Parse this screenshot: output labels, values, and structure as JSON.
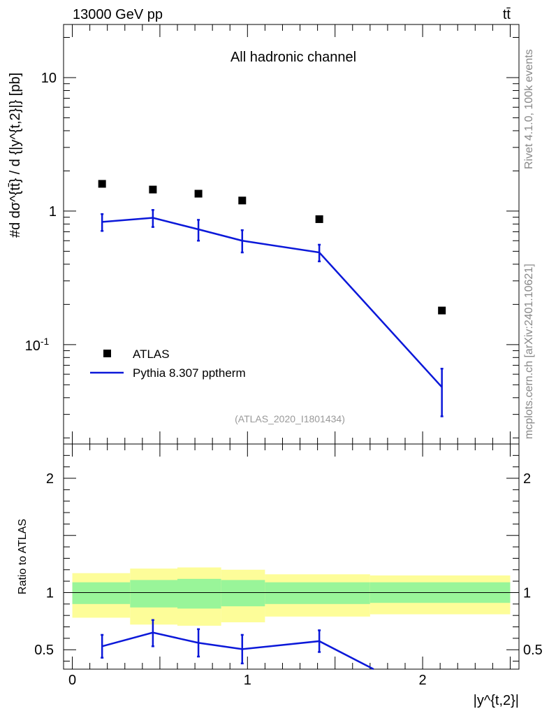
{
  "header": {
    "beam_label": "13000 GeV pp",
    "process_label": "tt̄"
  },
  "side_text": {
    "rivet": "Rivet 4.1.0,  100k events",
    "mcplots": "mcplots.cern.ch [arXiv:2401.10621]"
  },
  "colors": {
    "data": "#000000",
    "mc": "#0b18d9",
    "band_inner": "#99f599",
    "band_outer": "#fdfd99"
  },
  "chart_data": [
    {
      "type": "scatter",
      "panel": "main",
      "title": "All hadronic channel",
      "reference": "(ATLAS_2020_I1801434)",
      "ylabel": "#d dσ^{tt̄} / d {|y^{t,2}|} [pb]",
      "yscale": "log",
      "ylim": [
        0.018,
        25
      ],
      "xlim": [
        -0.05,
        2.55
      ],
      "y_tick_labels": [
        "10^{-1}",
        "1",
        "10"
      ],
      "legend": [
        "ATLAS",
        "Pythia 8.307 pptherm"
      ],
      "series": [
        {
          "name": "ATLAS",
          "style": "markers",
          "x": [
            0.17,
            0.46,
            0.72,
            0.97,
            1.41,
            2.11
          ],
          "y": [
            1.6,
            1.45,
            1.35,
            1.2,
            0.87,
            0.18
          ]
        },
        {
          "name": "Pythia 8.307 pptherm",
          "style": "line",
          "x": [
            0.17,
            0.46,
            0.72,
            0.97,
            1.41,
            2.11
          ],
          "y": [
            0.83,
            0.89,
            0.73,
            0.6,
            0.49,
            0.048
          ],
          "err_low": [
            0.71,
            0.76,
            0.6,
            0.49,
            0.42,
            0.029
          ],
          "err_high": [
            0.95,
            1.02,
            0.86,
            0.72,
            0.56,
            0.066
          ]
        }
      ]
    },
    {
      "type": "line",
      "panel": "ratio",
      "ylabel": "Ratio to ATLAS",
      "xlabel": "|y^{t,2}|",
      "ylim": [
        0.33,
        2.3
      ],
      "xlim": [
        -0.05,
        2.55
      ],
      "x_ticks": [
        0,
        1,
        2
      ],
      "y_ticks": [
        0.5,
        1,
        2
      ],
      "reference_line": 1,
      "bins": [
        {
          "lo": 0.0,
          "hi": 0.33,
          "inner": [
            0.9,
            1.09
          ],
          "outer": [
            0.78,
            1.17
          ]
        },
        {
          "lo": 0.33,
          "hi": 0.6,
          "inner": [
            0.87,
            1.11
          ],
          "outer": [
            0.72,
            1.21
          ]
        },
        {
          "lo": 0.6,
          "hi": 0.85,
          "inner": [
            0.86,
            1.12
          ],
          "outer": [
            0.71,
            1.22
          ]
        },
        {
          "lo": 0.85,
          "hi": 1.1,
          "inner": [
            0.88,
            1.11
          ],
          "outer": [
            0.74,
            1.2
          ]
        },
        {
          "lo": 1.1,
          "hi": 1.7,
          "inner": [
            0.9,
            1.09
          ],
          "outer": [
            0.79,
            1.16
          ]
        },
        {
          "lo": 1.7,
          "hi": 2.5,
          "inner": [
            0.91,
            1.09
          ],
          "outer": [
            0.81,
            1.15
          ]
        }
      ],
      "series": [
        {
          "name": "Pythia 8.307 pptherm",
          "x": [
            0.17,
            0.46,
            0.72,
            0.97,
            1.41,
            1.72
          ],
          "y": [
            0.53,
            0.65,
            0.56,
            0.505,
            0.575,
            0.33
          ],
          "err_low": [
            0.43,
            0.53,
            0.44,
            0.38,
            0.48,
            null
          ],
          "err_high": [
            0.63,
            0.76,
            0.68,
            0.63,
            0.67,
            null
          ]
        }
      ]
    }
  ]
}
